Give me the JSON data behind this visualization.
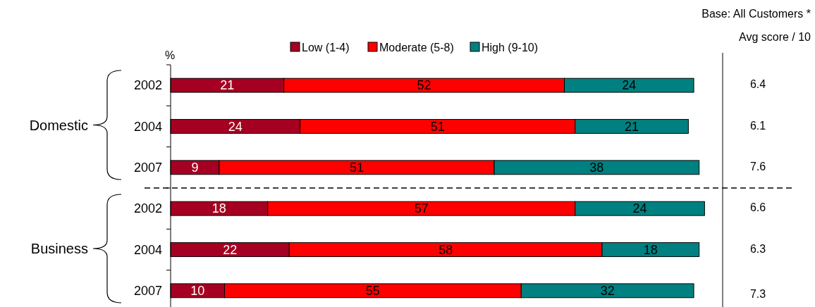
{
  "chart_data": {
    "type": "bar",
    "orientation": "horizontal",
    "stacked": true,
    "xlabel": "%",
    "categories": [
      "2002",
      "2004",
      "2007",
      "2002",
      "2004",
      "2007"
    ],
    "series": [
      {
        "name": "Low (1-4)",
        "color": "#a50021",
        "values": [
          21,
          24,
          9,
          18,
          22,
          10
        ]
      },
      {
        "name": "Moderate (5-8)",
        "color": "#ff0000",
        "values": [
          52,
          51,
          51,
          57,
          58,
          55
        ]
      },
      {
        "name": "High (9-10)",
        "color": "#008080",
        "values": [
          24,
          21,
          38,
          24,
          18,
          32
        ]
      }
    ],
    "data_labels": true,
    "legend": "top",
    "tick_labels": "y",
    "annotations": [
      "Base:  All Customers *",
      "Avg score / 10",
      "6.4",
      "6.1",
      "7.6",
      "6.6",
      "6.3",
      "7.3",
      "Domestic",
      "Business"
    ]
  }
}
